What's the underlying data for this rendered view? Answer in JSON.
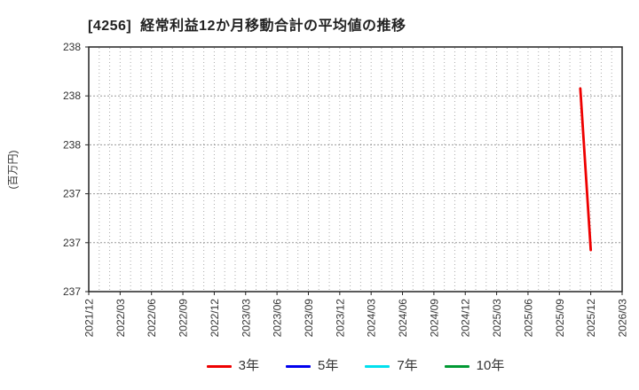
{
  "page": {
    "background": "#ffffff"
  },
  "chart_data": {
    "type": "line",
    "title": "[4256]  経常利益12か月移動合計の平均値の推移",
    "ylabel": "(百万円)",
    "x_ticks": [
      "2021/12",
      "2022/03",
      "2022/06",
      "2022/09",
      "2022/12",
      "2023/03",
      "2023/06",
      "2023/09",
      "2023/12",
      "2024/03",
      "2024/06",
      "2024/09",
      "2024/12",
      "2025/03",
      "2025/06",
      "2025/09",
      "2025/12",
      "2026/03"
    ],
    "x_minor_gridlines": "monthly",
    "ylim": [
      237.0,
      238.0
    ],
    "y_ticks": [
      {
        "value": 237.0,
        "label": "237"
      },
      {
        "value": 237.2,
        "label": "237"
      },
      {
        "value": 237.4,
        "label": "237"
      },
      {
        "value": 237.6,
        "label": "238"
      },
      {
        "value": 237.8,
        "label": "238"
      },
      {
        "value": 238.0,
        "label": "238"
      }
    ],
    "grid": true,
    "legend_position": "bottom",
    "axis_color": "#222222",
    "grid_color_v": "#aaaaaa",
    "grid_color_h": "#999999",
    "tick_label_color": "#333333",
    "series": [
      {
        "name": "3年",
        "color": "#ee0000",
        "points": [
          {
            "x": "2025/11",
            "y": 237.83
          },
          {
            "x": "2025/12",
            "y": 237.17
          }
        ]
      },
      {
        "name": "5年",
        "color": "#0000ee",
        "points": []
      },
      {
        "name": "7年",
        "color": "#00e0ee",
        "points": []
      },
      {
        "name": "10年",
        "color": "#009933",
        "points": []
      }
    ]
  }
}
